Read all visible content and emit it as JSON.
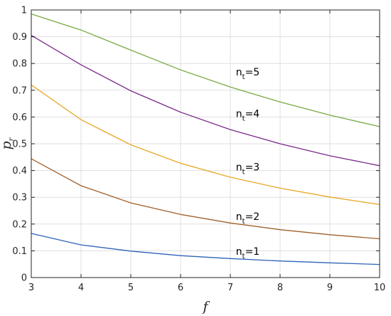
{
  "chart_data": {
    "type": "line",
    "xlabel": "f",
    "ylabel_main": "p",
    "ylabel_sub": "r",
    "xlim": [
      3,
      10
    ],
    "ylim": [
      0,
      1
    ],
    "xticks": [
      "3",
      "4",
      "5",
      "6",
      "7",
      "8",
      "9",
      "10"
    ],
    "yticks": [
      "0",
      "0.1",
      "0.2",
      "0.3",
      "0.4",
      "0.5",
      "0.6",
      "0.7",
      "0.8",
      "0.9",
      "1"
    ],
    "grid": true,
    "x": [
      3,
      4,
      5,
      6,
      7,
      8,
      9,
      10
    ],
    "series": [
      {
        "name": "n_t=1",
        "label_main": "n",
        "label_sub": "t",
        "label_suffix": "=1",
        "label_at": [
          7.35,
          0.085
        ],
        "color": "#2f62b8",
        "values": [
          0.165,
          0.122,
          0.099,
          0.082,
          0.071,
          0.062,
          0.055,
          0.049
        ]
      },
      {
        "name": "n_t=2",
        "label_main": "n",
        "label_sub": "t",
        "label_suffix": "=2",
        "label_at": [
          7.35,
          0.215
        ],
        "color": "#a0602a",
        "values": [
          0.444,
          0.343,
          0.279,
          0.236,
          0.204,
          0.179,
          0.16,
          0.145
        ]
      },
      {
        "name": "n_t=3",
        "label_main": "n",
        "label_sub": "t",
        "label_suffix": "=3",
        "label_at": [
          7.35,
          0.4
        ],
        "color": "#e7a823",
        "values": [
          0.72,
          0.59,
          0.496,
          0.427,
          0.375,
          0.334,
          0.301,
          0.273
        ]
      },
      {
        "name": "n_t=4",
        "label_main": "n",
        "label_sub": "t",
        "label_suffix": "=4",
        "label_at": [
          7.35,
          0.6
        ],
        "color": "#7b2b8a",
        "values": [
          0.905,
          0.795,
          0.698,
          0.618,
          0.553,
          0.5,
          0.455,
          0.418
        ]
      },
      {
        "name": "n_t=5",
        "label_main": "n",
        "label_sub": "t",
        "label_suffix": "=5",
        "label_at": [
          7.35,
          0.755
        ],
        "color": "#78a843",
        "values": [
          0.985,
          0.925,
          0.85,
          0.776,
          0.712,
          0.656,
          0.607,
          0.564
        ]
      }
    ]
  }
}
